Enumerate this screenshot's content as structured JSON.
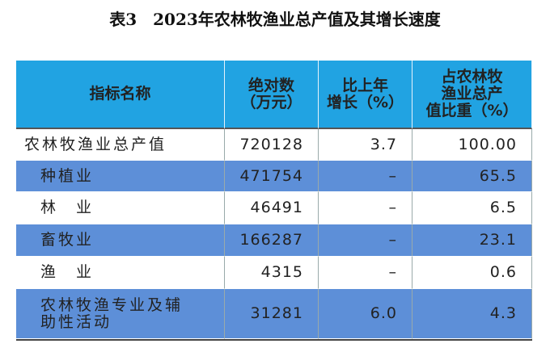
{
  "title": "表3　2023年农林牧渔业总产值及其增长速度",
  "table": {
    "header": [
      [
        "指标名称"
      ],
      [
        "绝对数",
        "（万元）"
      ],
      [
        "比上年",
        "增长（%）"
      ],
      [
        "占农林牧",
        "渔业总产",
        "值比重（%）"
      ]
    ],
    "rows": [
      [
        [
          "农林牧渔业总产值"
        ],
        "720128",
        "3.7",
        "100.00"
      ],
      [
        [
          "种植业"
        ],
        "471754",
        "–",
        "65.5"
      ],
      [
        [
          "林　业"
        ],
        "46491",
        "–",
        "6.5"
      ],
      [
        [
          "畜牧业"
        ],
        "166287",
        "–",
        "23.1"
      ],
      [
        [
          "渔　业"
        ],
        "4315",
        "–",
        "0.6"
      ],
      [
        [
          "农林牧渔专业及辅",
          "助性活动"
        ],
        "31281",
        "6.0",
        "4.3"
      ]
    ]
  }
}
